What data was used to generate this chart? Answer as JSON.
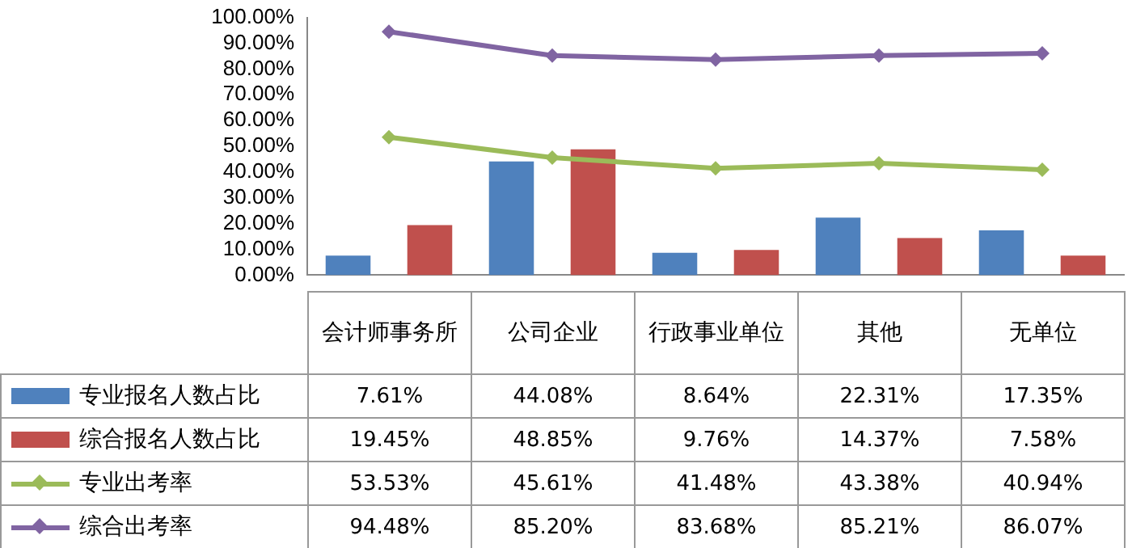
{
  "chart_data": {
    "type": "bar",
    "categories": [
      "会计师事务所",
      "公司企业",
      "行政事业单位",
      "其他",
      "无单位"
    ],
    "series": [
      {
        "name": "专业报名人数占比",
        "color": "#4f81bd",
        "values": [
          7.61,
          44.08,
          8.64,
          22.31,
          17.35
        ],
        "value_labels": [
          "7.61%",
          "44.08%",
          "8.64%",
          "22.31%",
          "17.35%"
        ]
      },
      {
        "name": "综合报名人数占比",
        "color": "#c0504d",
        "values": [
          19.45,
          48.85,
          9.76,
          14.37,
          7.58
        ],
        "value_labels": [
          "19.45%",
          "48.85%",
          "9.76%",
          "14.37%",
          "7.58%"
        ]
      },
      {
        "name": "专业出考率",
        "type": "line",
        "color": "#9bbb59",
        "values": [
          53.53,
          45.61,
          41.48,
          43.38,
          40.94
        ],
        "value_labels": [
          "53.53%",
          "45.61%",
          "41.48%",
          "43.38%",
          "40.94%"
        ]
      },
      {
        "name": "综合出考率",
        "type": "line",
        "color": "#8064a2",
        "values": [
          94.48,
          85.2,
          83.68,
          85.21,
          86.07
        ],
        "value_labels": [
          "94.48%",
          "85.20%",
          "83.68%",
          "85.21%",
          "86.07%"
        ]
      }
    ],
    "ylim": [
      0,
      100
    ],
    "yticks": [
      {
        "value": 0,
        "label": "0.00%"
      },
      {
        "value": 10,
        "label": "10.00%"
      },
      {
        "value": 20,
        "label": "20.00%"
      },
      {
        "value": 30,
        "label": "30.00%"
      },
      {
        "value": 40,
        "label": "40.00%"
      },
      {
        "value": 50,
        "label": "50.00%"
      },
      {
        "value": 60,
        "label": "60.00%"
      },
      {
        "value": 70,
        "label": "70.00%"
      },
      {
        "value": 80,
        "label": "80.00%"
      },
      {
        "value": 90,
        "label": "90.00%"
      },
      {
        "value": 100,
        "label": "100.00%"
      }
    ],
    "grid": false,
    "legend": "bottom",
    "marker": "diamond",
    "line_style": "solid"
  }
}
